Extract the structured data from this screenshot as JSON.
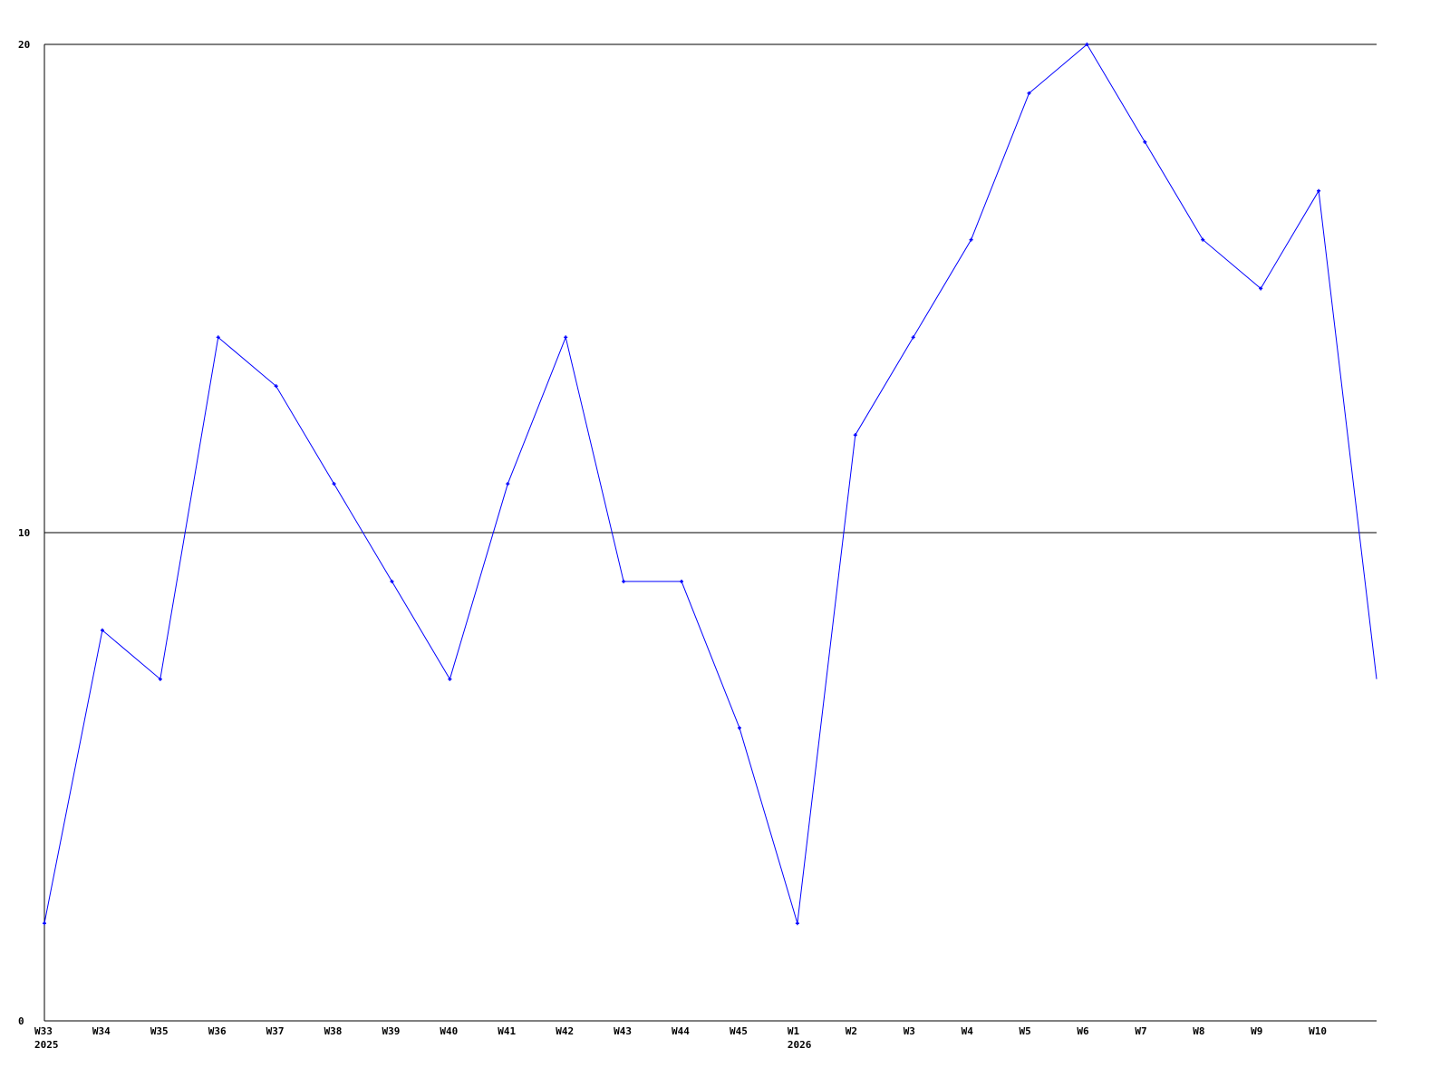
{
  "chart_data": {
    "type": "line",
    "title": "",
    "xlabel": "",
    "ylabel": "",
    "ylim": [
      0,
      20
    ],
    "yticks": [
      "0",
      "10",
      "20"
    ],
    "ytick_values": [
      0,
      10,
      20
    ],
    "grid": "horizontal lines at y ticks",
    "categories": [
      "W33",
      "W34",
      "W35",
      "W36",
      "W37",
      "W38",
      "W39",
      "W40",
      "W41",
      "W42",
      "W43",
      "W44",
      "W45",
      "W1",
      "W2",
      "W3",
      "W4",
      "W5",
      "W6",
      "W7",
      "W8",
      "W9",
      "W10",
      ""
    ],
    "year_labels": [
      {
        "category": "W33",
        "label": "2025"
      },
      {
        "category": "W1",
        "label": "2026"
      }
    ],
    "series": [
      {
        "values": [
          2,
          8,
          7,
          14,
          13,
          11,
          9,
          7,
          11,
          14,
          9,
          9,
          6,
          2,
          12,
          14,
          16,
          19,
          20,
          18,
          16,
          15,
          17,
          7
        ],
        "color": "#0000ff"
      }
    ]
  }
}
